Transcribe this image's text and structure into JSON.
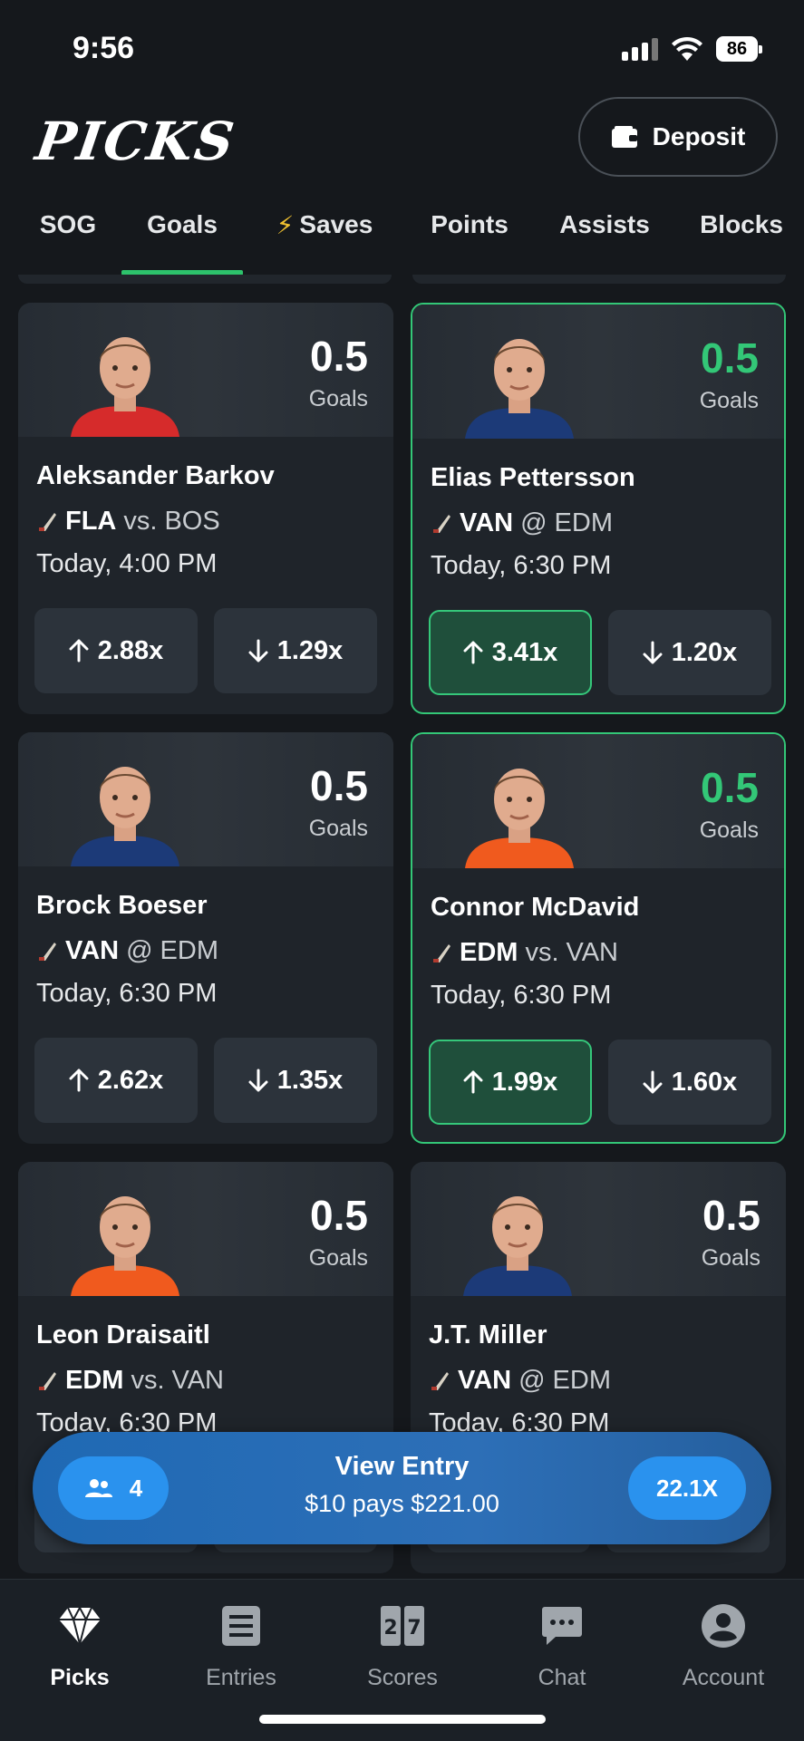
{
  "status": {
    "time": "9:56",
    "battery": "86"
  },
  "header": {
    "title": "PICKS",
    "deposit_label": "Deposit"
  },
  "tabs": [
    {
      "label": "SOG"
    },
    {
      "label": "Goals"
    },
    {
      "label": "Saves"
    },
    {
      "label": "Points"
    },
    {
      "label": "Assists"
    },
    {
      "label": "Blocks"
    }
  ],
  "cards": [
    {
      "line": "0.5",
      "stat": "Goals",
      "name": "Aleksander Barkov",
      "team": "FLA",
      "sep": "vs.",
      "opp": "BOS",
      "time": "Today, 4:00 PM",
      "over": "2.88x",
      "under": "1.29x",
      "jersey": "#d62b2b",
      "selected": false
    },
    {
      "line": "0.5",
      "stat": "Goals",
      "name": "Elias Pettersson",
      "team": "VAN",
      "sep": "@",
      "opp": "EDM",
      "time": "Today, 6:30 PM",
      "over": "3.41x",
      "under": "1.20x",
      "jersey": "#1c3a78",
      "selected": true
    },
    {
      "line": "0.5",
      "stat": "Goals",
      "name": "Brock Boeser",
      "team": "VAN",
      "sep": "@",
      "opp": "EDM",
      "time": "Today, 6:30 PM",
      "over": "2.62x",
      "under": "1.35x",
      "jersey": "#1c3a78",
      "selected": false
    },
    {
      "line": "0.5",
      "stat": "Goals",
      "name": "Connor McDavid",
      "team": "EDM",
      "sep": "vs.",
      "opp": "VAN",
      "time": "Today, 6:30 PM",
      "over": "1.99x",
      "under": "1.60x",
      "jersey": "#f05a1e",
      "selected": true
    },
    {
      "line": "0.5",
      "stat": "Goals",
      "name": "Leon Draisaitl",
      "team": "EDM",
      "sep": "vs.",
      "opp": "VAN",
      "time": "Today, 6:30 PM",
      "over": "",
      "under": "",
      "jersey": "#f05a1e",
      "selected": false
    },
    {
      "line": "0.5",
      "stat": "Goals",
      "name": "J.T. Miller",
      "team": "VAN",
      "sep": "@",
      "opp": "EDM",
      "time": "Today, 6:30 PM",
      "over": "",
      "under": "",
      "jersey": "#1c3a78",
      "selected": false
    }
  ],
  "entry": {
    "count": "4",
    "title": "View Entry",
    "subtitle": "$10 pays $221.00",
    "multiplier": "22.1X"
  },
  "nav": [
    {
      "label": "Picks",
      "icon": "diamond-icon"
    },
    {
      "label": "Entries",
      "icon": "list-icon"
    },
    {
      "label": "Scores",
      "icon": "scoreboard-icon"
    },
    {
      "label": "Chat",
      "icon": "chat-icon"
    },
    {
      "label": "Account",
      "icon": "account-icon"
    }
  ],
  "colors": {
    "accent_green": "#33c777",
    "entry_blue": "#2a92ee",
    "background": "#15181c"
  }
}
